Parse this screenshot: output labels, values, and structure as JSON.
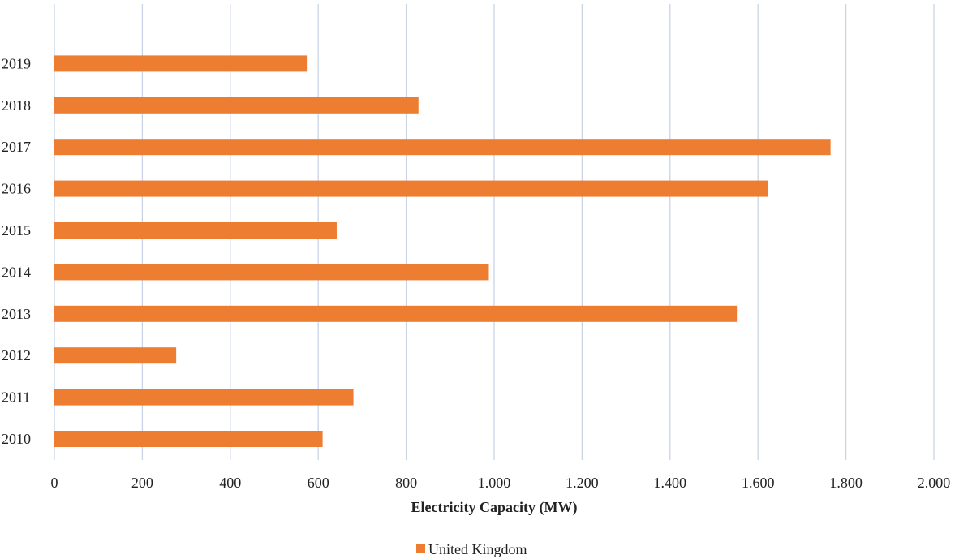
{
  "chart_data": {
    "type": "bar",
    "orientation": "horizontal",
    "categories": [
      "2010",
      "2011",
      "2012",
      "2013",
      "2014",
      "2015",
      "2016",
      "2017",
      "2018",
      "2019"
    ],
    "series": [
      {
        "name": "United Kingdom",
        "color": "#ED7D31",
        "values": [
          610,
          680,
          277,
          1552,
          988,
          642,
          1622,
          1765,
          828,
          574
        ]
      }
    ],
    "title": "",
    "xlabel": "Electricity Capacity (MW)",
    "ylabel": "",
    "xlim": [
      0,
      2000
    ],
    "x_ticks": [
      0,
      200,
      400,
      600,
      800,
      1000,
      1200,
      1400,
      1600,
      1800,
      2000
    ],
    "x_tick_labels": [
      "0",
      "200",
      "400",
      "600",
      "800",
      "1.000",
      "1.200",
      "1.400",
      "1.600",
      "1.800",
      "2.000"
    ],
    "grid": "vertical",
    "gridline_color": "#C9D3E6",
    "legend": "bottom-center"
  }
}
